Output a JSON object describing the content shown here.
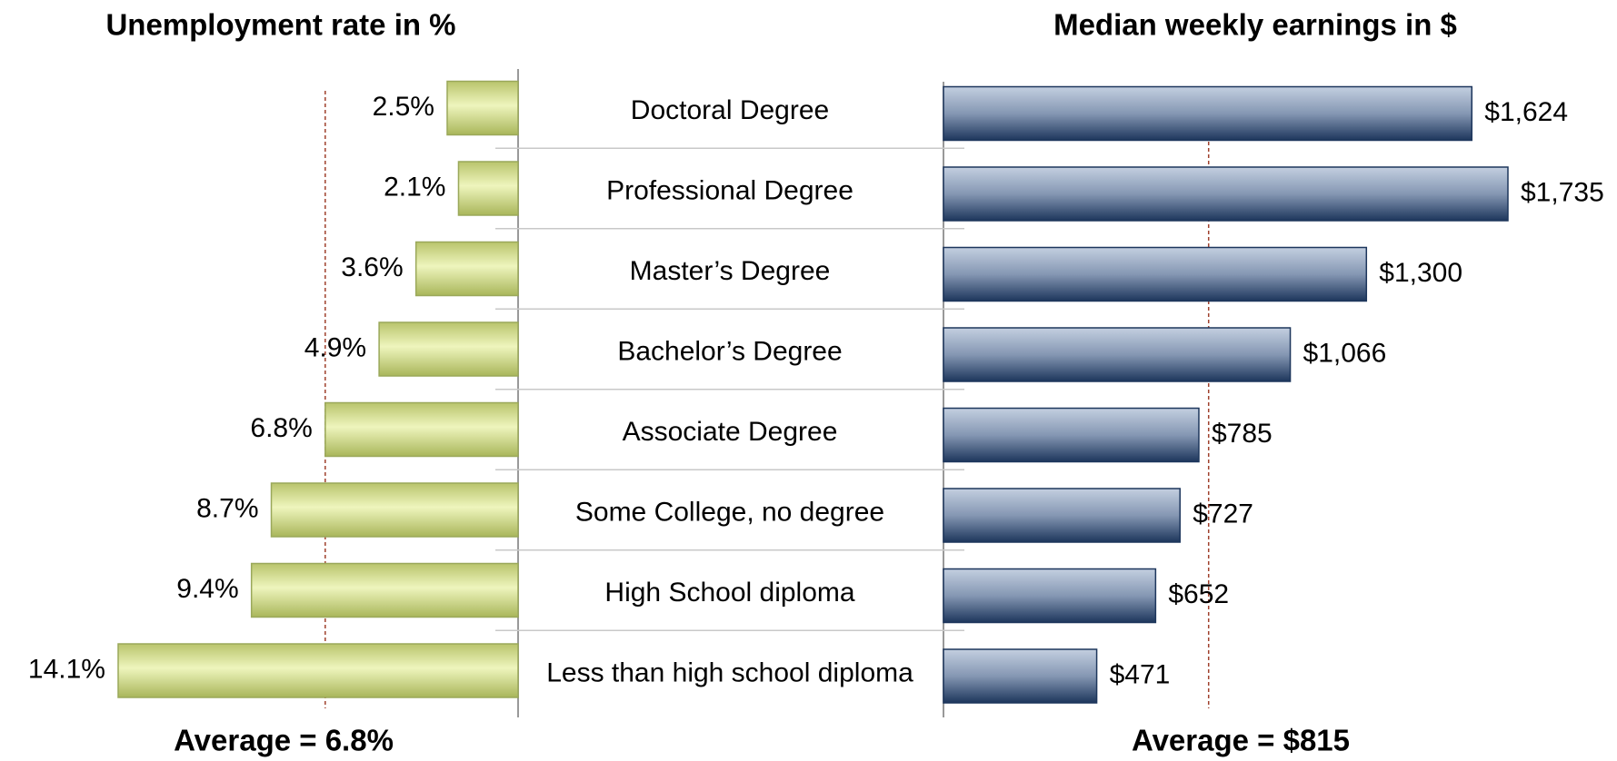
{
  "chart_data": {
    "type": "bar",
    "categories": [
      "Doctoral Degree",
      "Professional Degree",
      "Master’s Degree",
      "Bachelor’s Degree",
      "Associate Degree",
      "Some College, no degree",
      "High School diploma",
      "Less than high school diploma"
    ],
    "series": [
      {
        "name": "Unemployment rate in %",
        "color": "#c4d17e",
        "values": [
          2.5,
          2.1,
          3.6,
          4.9,
          6.8,
          8.7,
          9.4,
          14.1
        ],
        "value_labels": [
          "2.5%",
          "2.1%",
          "3.6%",
          "4.9%",
          "6.8%",
          "8.7%",
          "9.4%",
          "14.1%"
        ],
        "average": 6.8,
        "annotation": "Average = 6.8%"
      },
      {
        "name": "Median weekly earnings in $",
        "color": "#3a5478",
        "values": [
          1624,
          1735,
          1300,
          1066,
          785,
          727,
          652,
          471
        ],
        "value_labels": [
          "$1,624",
          "$1,735",
          "$1,300",
          "$1,066",
          "$785",
          "$727",
          "$652",
          "$471"
        ],
        "average": 815,
        "annotation": "Average = $815"
      }
    ]
  }
}
